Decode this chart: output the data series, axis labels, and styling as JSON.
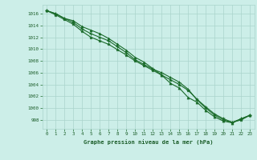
{
  "title": "Graphe pression niveau de la mer (hPa)",
  "bg_color": "#cceee8",
  "grid_color": "#aad4cc",
  "line_color": "#1a6b2a",
  "text_color": "#1a5c28",
  "xlim": [
    -0.5,
    23.5
  ],
  "ylim": [
    996.5,
    1017.5
  ],
  "xticks": [
    0,
    1,
    2,
    3,
    4,
    5,
    6,
    7,
    8,
    9,
    10,
    11,
    12,
    13,
    14,
    15,
    16,
    17,
    18,
    19,
    20,
    21,
    22,
    23
  ],
  "yticks": [
    998,
    1000,
    1002,
    1004,
    1006,
    1008,
    1010,
    1012,
    1014,
    1016
  ],
  "line1": [
    1016.5,
    1016.0,
    1015.2,
    1014.8,
    1013.8,
    1013.2,
    1012.6,
    1011.8,
    1010.8,
    1009.8,
    1008.6,
    1007.8,
    1006.7,
    1005.6,
    1004.2,
    1003.4,
    1001.8,
    1001.0,
    999.6,
    998.5,
    997.8,
    997.5,
    998.2,
    998.8
  ],
  "line2": [
    1016.5,
    1016.0,
    1015.2,
    1014.5,
    1013.4,
    1012.6,
    1012.0,
    1011.4,
    1010.4,
    1009.4,
    1008.2,
    1007.4,
    1006.6,
    1006.0,
    1005.2,
    1004.4,
    1003.2,
    1001.4,
    1000.0,
    998.8,
    998.0,
    997.6,
    998.2,
    998.8
  ],
  "line3": [
    1016.5,
    1015.8,
    1015.0,
    1014.2,
    1013.0,
    1012.0,
    1011.4,
    1010.8,
    1009.9,
    1009.0,
    1008.0,
    1007.2,
    1006.4,
    1005.6,
    1004.8,
    1004.0,
    1003.0,
    1001.5,
    1000.2,
    999.0,
    998.2,
    997.6,
    998.0,
    998.8
  ]
}
